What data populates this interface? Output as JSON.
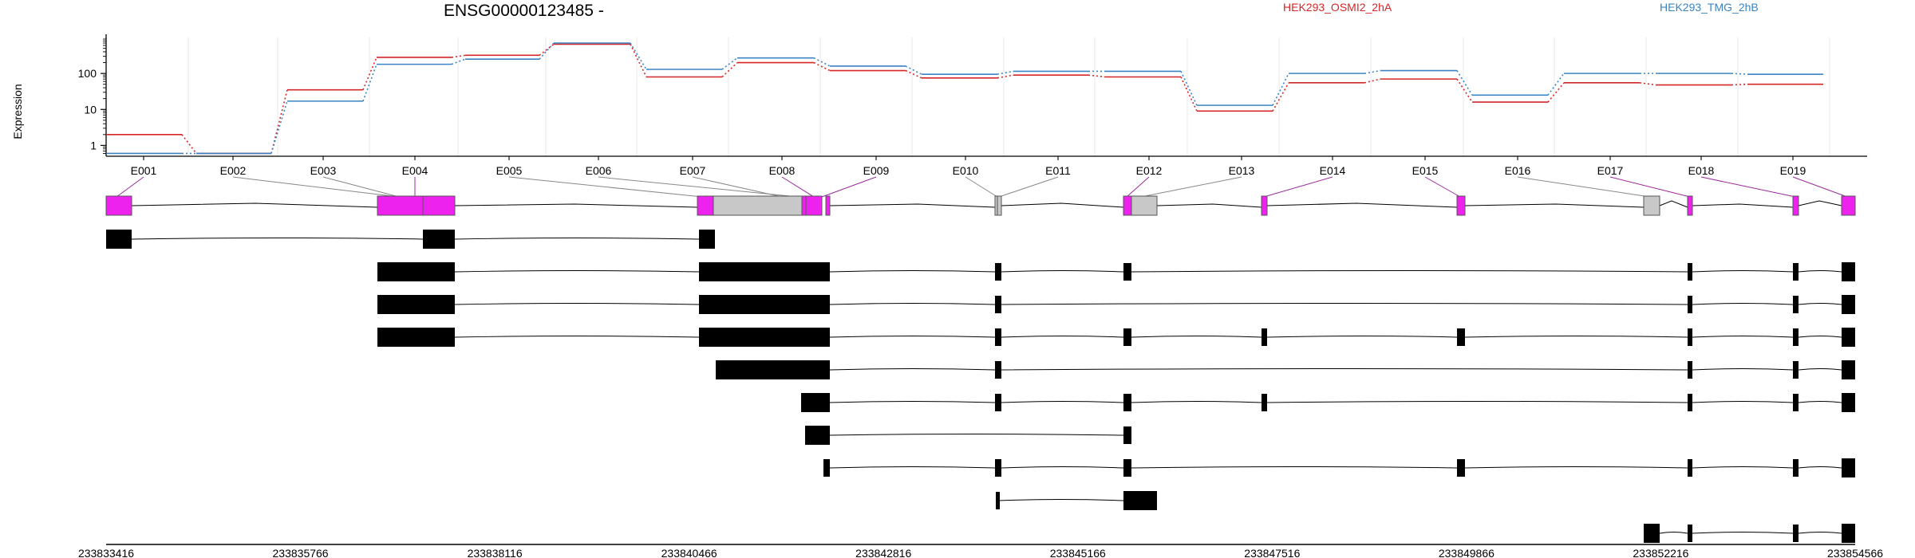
{
  "chart_data": {
    "type": "line",
    "title": "ENSG00000123485 -",
    "ylabel": "Expression",
    "yscale": "log",
    "ylim": [
      0.5,
      1000
    ],
    "yticks": [
      1,
      10,
      100
    ],
    "exons": [
      "E001",
      "E002",
      "E003",
      "E004",
      "E005",
      "E006",
      "E007",
      "E008",
      "E009",
      "E010",
      "E011",
      "E012",
      "E013",
      "E014",
      "E015",
      "E016",
      "E017",
      "E018",
      "E019"
    ],
    "series": [
      {
        "name": "HEK293_OSMI2_2hA",
        "color": "#d62728",
        "values": [
          2,
          0.6,
          35,
          280,
          320,
          650,
          80,
          200,
          120,
          75,
          90,
          80,
          9,
          55,
          70,
          16,
          55,
          48,
          50
        ]
      },
      {
        "name": "HEK293_TMG_2hB",
        "color": "#3b84c4",
        "values": [
          0.6,
          0.6,
          17,
          180,
          250,
          700,
          130,
          270,
          160,
          95,
          115,
          115,
          13,
          100,
          120,
          25,
          100,
          100,
          95
        ]
      }
    ],
    "gene_track": {
      "genomic_ticks": [
        "233833416",
        "233835766",
        "233838116",
        "233840466",
        "233842816",
        "233845166",
        "233847516",
        "233849866",
        "233852216",
        "233854566"
      ],
      "exon_color": "#ee22ee",
      "retained_color": "#c8c8c8",
      "transcript_color": "#000000"
    }
  }
}
